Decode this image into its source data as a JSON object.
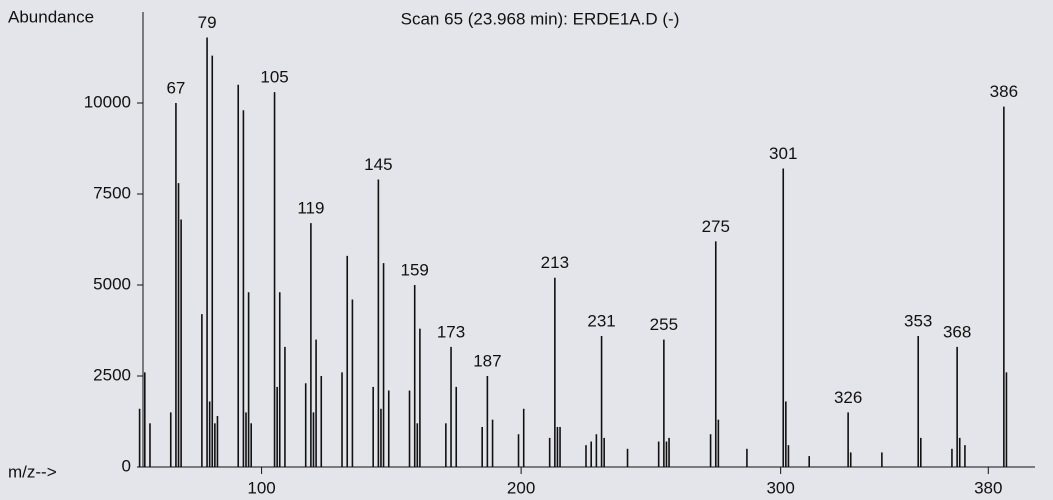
{
  "chart_data": {
    "type": "spectrum",
    "title": "Scan 65 (23.968 min): ERDE1A.D (-)",
    "y_label": "Abundance",
    "x_label": "m/z-->",
    "color": "#111111",
    "x": [
      53,
      55,
      57,
      65,
      67,
      68,
      69,
      77,
      79,
      80,
      81,
      82,
      83,
      91,
      93,
      94,
      95,
      96,
      105,
      106,
      107,
      109,
      117,
      119,
      120,
      121,
      123,
      131,
      133,
      135,
      143,
      145,
      146,
      147,
      149,
      157,
      159,
      160,
      161,
      171,
      173,
      175,
      185,
      187,
      189,
      199,
      201,
      211,
      213,
      214,
      215,
      225,
      227,
      229,
      231,
      232,
      241,
      253,
      255,
      256,
      257,
      273,
      275,
      276,
      287,
      301,
      302,
      303,
      311,
      326,
      327,
      339,
      353,
      354,
      366,
      368,
      369,
      371,
      386,
      387
    ],
    "values": [
      1600,
      2600,
      1200,
      1500,
      10000,
      7800,
      6800,
      4200,
      11800,
      1800,
      11300,
      1200,
      1400,
      10500,
      9800,
      1500,
      4800,
      1200,
      10300,
      2200,
      4800,
      3300,
      2300,
      6700,
      1500,
      3500,
      2500,
      2600,
      5800,
      4600,
      2200,
      7900,
      1600,
      5600,
      2100,
      2100,
      5000,
      1200,
      3800,
      1200,
      3300,
      2200,
      1100,
      2500,
      1300,
      900,
      1600,
      800,
      5200,
      1100,
      1100,
      600,
      700,
      900,
      3600,
      800,
      500,
      700,
      3500,
      700,
      800,
      900,
      6200,
      1300,
      500,
      8200,
      1800,
      600,
      300,
      1500,
      400,
      400,
      3600,
      800,
      500,
      3300,
      800,
      600,
      9900,
      2600
    ],
    "annotations": [
      67,
      79,
      105,
      119,
      145,
      159,
      173,
      187,
      213,
      231,
      255,
      275,
      301,
      326,
      353,
      368,
      386
    ],
    "xlim": [
      52,
      398
    ],
    "ylim": [
      0,
      12500
    ],
    "xticks": [
      100,
      200,
      300,
      380
    ],
    "yticks": [
      0,
      2500,
      5000,
      7500,
      10000
    ]
  }
}
